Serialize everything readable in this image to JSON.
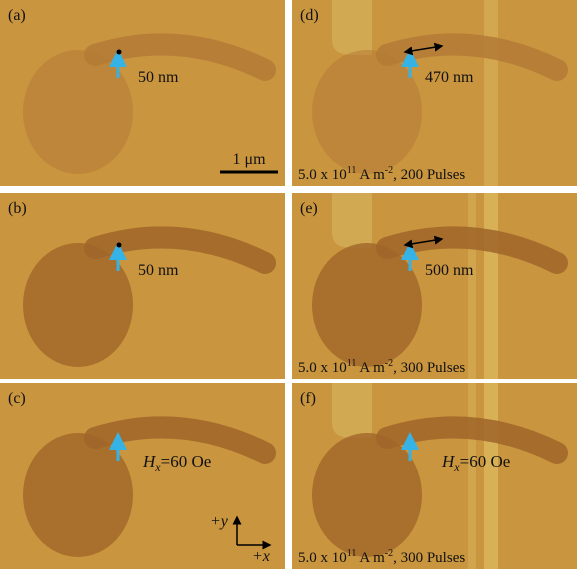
{
  "panels": [
    {
      "label": "(a)",
      "distance": "50 nm",
      "scale_bar": "1 μm"
    },
    {
      "label": "(b)",
      "distance": "50 nm"
    },
    {
      "label": "(c)",
      "field": {
        "symbol": "H",
        "subscript": "x",
        "value": "=60 Oe"
      },
      "axes": {
        "y": "+y",
        "x": "+x"
      }
    },
    {
      "label": "(d)",
      "distance": "470 nm",
      "pulse": {
        "base": "5.0 x 10",
        "exp": "11",
        "unit": " A m",
        "unit_exp": "-2",
        "count": ", 200 Pulses"
      }
    },
    {
      "label": "(e)",
      "distance": "500 nm",
      "pulse": {
        "base": "5.0 x 10",
        "exp": "11",
        "unit": " A m",
        "unit_exp": "-2",
        "count": ", 300 Pulses"
      }
    },
    {
      "label": "(f)",
      "field": {
        "symbol": "H",
        "subscript": "x",
        "value": "=60 Oe"
      },
      "pulse": {
        "base": "5.0 x 10",
        "exp": "11",
        "unit": " A m",
        "unit_exp": "-2",
        "count": ", 300 Pulses"
      }
    }
  ]
}
